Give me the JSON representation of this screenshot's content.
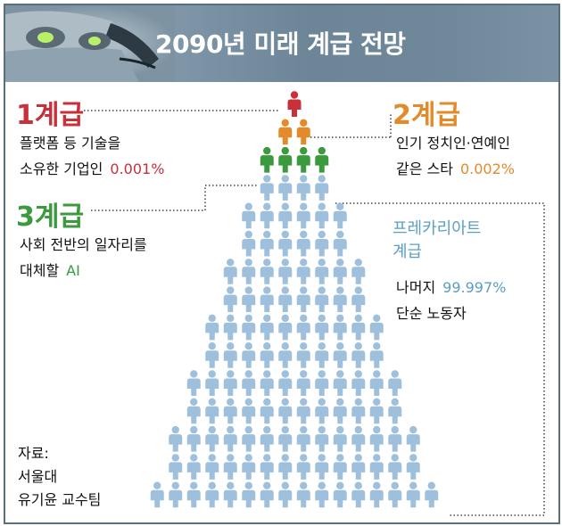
{
  "title": "2090년 미래 계급 전망",
  "colors": {
    "tier1": "#c8303a",
    "tier2": "#e38b2b",
    "tier3": "#3c9a3e",
    "tier4": "#9fc0dc",
    "header": "#6c8597"
  },
  "tier1": {
    "level": "1계급",
    "line1": "플랫폼 등 기술을",
    "line2": "소유한 기업인",
    "pct": "0.001%"
  },
  "tier2": {
    "level": "2계급",
    "line1": "인기 정치인·연예인",
    "line2": "같은 스타",
    "pct": "0.002%"
  },
  "tier3": {
    "level": "3계급",
    "line1": "사회 전반의 일자리를",
    "line2": "대체할",
    "pct": "AI"
  },
  "tier4": {
    "level_line1": "프레카리아트",
    "level_line2": "계급",
    "line1": "나머지",
    "pct": "99.997%",
    "line2": "단순 노동자"
  },
  "source": {
    "line1": "자료:",
    "line2": "서울대",
    "line3": "유기윤 교수팀"
  },
  "pyramid": {
    "row_counts": [
      1,
      2,
      4,
      4,
      6,
      6,
      8,
      8,
      10,
      10,
      12,
      12,
      14,
      14,
      16
    ]
  }
}
